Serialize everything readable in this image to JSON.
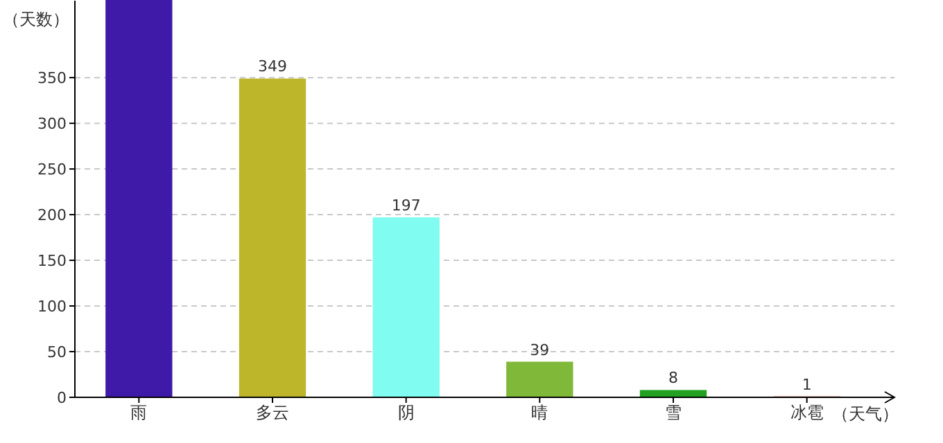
{
  "chart_data": {
    "type": "bar",
    "ylabel": "（天数）",
    "xlabel": "（天气）",
    "categories": [
      "雨",
      "多云",
      "阴",
      "晴",
      "雪",
      "冰雹"
    ],
    "values": [
      435,
      349,
      197,
      39,
      8,
      1
    ],
    "colors": [
      "#3f1aa8",
      "#bdb52a",
      "#80fcf0",
      "#80b83a",
      "#22a022",
      "#c0392b"
    ],
    "value_labels": [
      null,
      "349",
      "197",
      "39",
      "8",
      "1"
    ],
    "ylim": [
      0,
      435
    ],
    "yticks": [
      0,
      50,
      100,
      150,
      200,
      250,
      300,
      350
    ],
    "grid": "y"
  }
}
